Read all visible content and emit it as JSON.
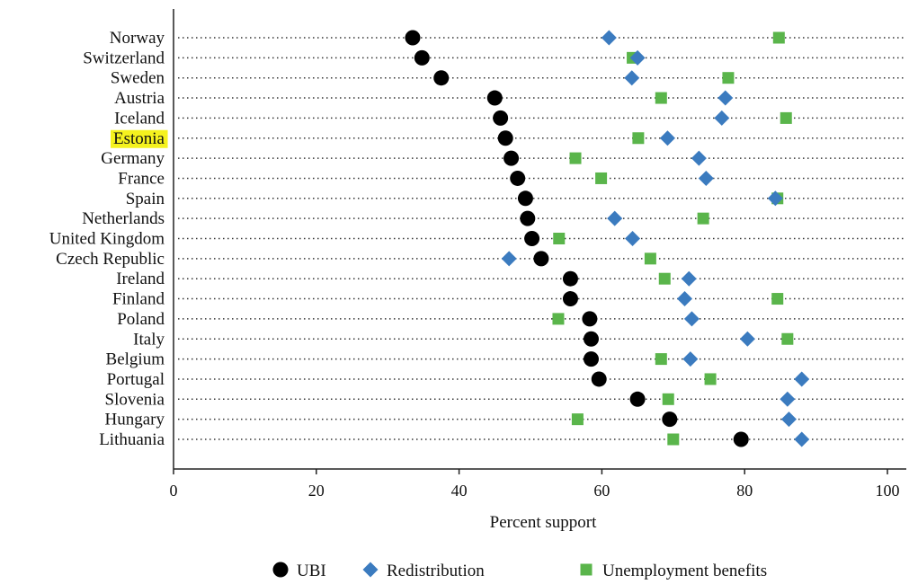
{
  "chart_data": {
    "type": "scatter",
    "xlabel": "Percent support",
    "xlim": [
      0,
      100
    ],
    "xticks": [
      0,
      20,
      40,
      60,
      80,
      100
    ],
    "categories": [
      "Norway",
      "Switzerland",
      "Sweden",
      "Austria",
      "Iceland",
      "Estonia",
      "Germany",
      "France",
      "Spain",
      "Netherlands",
      "United Kingdom",
      "Czech Republic",
      "Ireland",
      "Finland",
      "Poland",
      "Italy",
      "Belgium",
      "Portugal",
      "Slovenia",
      "Hungary",
      "Lithuania"
    ],
    "highlighted_category": "Estonia",
    "highlight_color": "#f5f21e",
    "legend_position": "bottom",
    "series": [
      {
        "name": "UBI",
        "marker": "circle",
        "color": "#000000",
        "values": [
          33.5,
          34.8,
          37.5,
          45,
          45.8,
          46.5,
          47.3,
          48.2,
          49.3,
          49.6,
          50.2,
          51.5,
          55.6,
          55.6,
          58.3,
          58.5,
          58.5,
          59.6,
          65,
          69.5,
          79.5
        ]
      },
      {
        "name": "Redistribution",
        "marker": "diamond",
        "color": "#3b7bbf",
        "values": [
          61,
          65,
          64.2,
          77.3,
          76.8,
          69.2,
          73.6,
          74.6,
          84.3,
          61.8,
          64.3,
          47,
          72.2,
          71.6,
          72.6,
          80.4,
          72.4,
          88,
          86,
          86.2,
          88
        ]
      },
      {
        "name": "Unemployment benefits",
        "marker": "square",
        "color": "#5ab54b",
        "values": [
          84.8,
          64.3,
          77.7,
          68.3,
          85.8,
          65.1,
          56.3,
          59.9,
          84.6,
          74.2,
          54,
          66.8,
          68.8,
          84.6,
          53.9,
          86,
          68.3,
          75.2,
          69.3,
          56.6,
          70
        ]
      }
    ]
  }
}
